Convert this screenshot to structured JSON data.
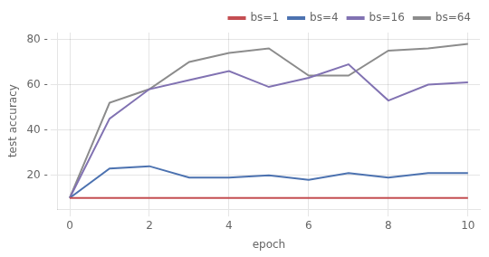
{
  "chart_data": {
    "type": "line",
    "x": [
      0,
      1,
      2,
      3,
      4,
      5,
      6,
      7,
      8,
      9,
      10
    ],
    "series": [
      {
        "name": "bs=1",
        "color": "#c44e52",
        "values": [
          10,
          10,
          10,
          10,
          10,
          10,
          10,
          10,
          10,
          10,
          10
        ]
      },
      {
        "name": "bs=4",
        "color": "#4c72b0",
        "values": [
          10,
          23,
          24,
          19,
          19,
          20,
          18,
          21,
          19,
          21,
          21
        ]
      },
      {
        "name": "bs=16",
        "color": "#8172b2",
        "values": [
          10,
          45,
          58,
          62,
          66,
          59,
          63,
          69,
          53,
          60,
          61
        ]
      },
      {
        "name": "bs=64",
        "color": "#8c8c8c",
        "values": [
          10,
          52,
          58,
          70,
          74,
          76,
          64,
          64,
          75,
          76,
          78
        ]
      }
    ],
    "xlabel": "epoch",
    "ylabel": "test accuracy",
    "xlim": [
      -0.3,
      10.3
    ],
    "xticks": [
      0,
      2,
      4,
      6,
      8,
      10
    ],
    "ylim": [
      5,
      83
    ],
    "yticks": [
      {
        "value": 20,
        "label": "20 -"
      },
      {
        "value": 40,
        "label": "40 -"
      },
      {
        "value": 60,
        "label": "60 -"
      },
      {
        "value": 80,
        "label": "80 -"
      }
    ],
    "grid": true,
    "legend": "upper right"
  }
}
